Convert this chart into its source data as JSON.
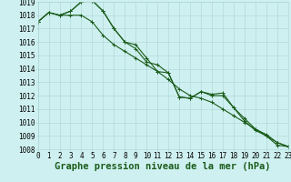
{
  "title": "Graphe pression niveau de la mer (hPa)",
  "xlabel_hours": [
    0,
    1,
    2,
    3,
    4,
    5,
    6,
    7,
    8,
    9,
    10,
    11,
    12,
    13,
    14,
    15,
    16,
    17,
    18,
    19,
    20,
    21,
    22,
    23
  ],
  "line1": [
    1017.5,
    1018.2,
    1018.0,
    1018.3,
    1019.0,
    1019.1,
    1018.3,
    1017.0,
    1016.0,
    1015.8,
    1014.8,
    1013.8,
    1013.7,
    1011.9,
    1011.8,
    1012.3,
    1012.1,
    1012.2,
    1011.1,
    1010.3,
    1009.5,
    1009.1,
    1008.5,
    1008.2
  ],
  "line2": [
    1017.5,
    1018.2,
    1018.0,
    1018.3,
    1019.0,
    1019.1,
    1018.3,
    1017.0,
    1016.0,
    1015.5,
    1014.5,
    1014.3,
    1013.7,
    1011.9,
    1011.8,
    1012.3,
    1012.0,
    1012.0,
    1011.1,
    1010.1,
    1009.4,
    1009.0,
    1008.3,
    1008.2
  ],
  "line3": [
    1017.5,
    1018.2,
    1018.0,
    1018.0,
    1018.0,
    1017.5,
    1016.5,
    1015.8,
    1015.3,
    1014.8,
    1014.3,
    1013.8,
    1013.2,
    1012.5,
    1012.0,
    1011.8,
    1011.5,
    1011.0,
    1010.5,
    1010.0,
    1009.5,
    1009.0,
    1008.5,
    1008.2
  ],
  "bg_color": "#cff0f0",
  "grid_color": "#aad4d4",
  "line_color": "#1a5c1a",
  "marker": "+",
  "ylim_min": 1008,
  "ylim_max": 1019,
  "yticks": [
    1008,
    1009,
    1010,
    1011,
    1012,
    1013,
    1014,
    1015,
    1016,
    1017,
    1018,
    1019
  ],
  "title_fontsize": 7.5,
  "tick_fontsize": 5.5,
  "line_width": 0.8
}
